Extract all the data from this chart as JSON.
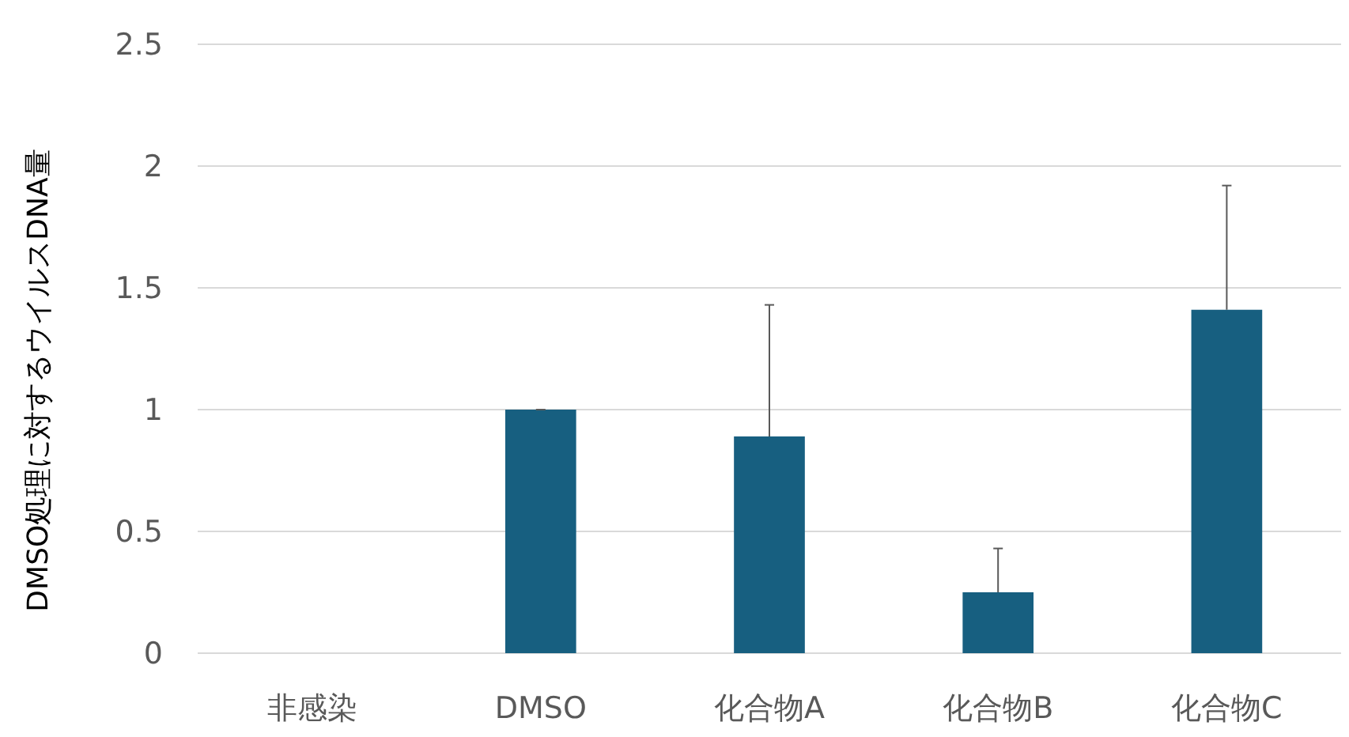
{
  "chart_data": {
    "type": "bar",
    "ylabel": "DMSO処理に対するウイルスDNA量",
    "categories": [
      "非感染",
      "DMSO",
      "化合物A",
      "化合物B",
      "化合物C"
    ],
    "values": [
      0,
      1.0,
      0.89,
      0.25,
      1.41
    ],
    "errors": [
      null,
      [
        1.0,
        1.0
      ],
      [
        0.89,
        1.43
      ],
      [
        0.25,
        0.43
      ],
      [
        1.41,
        1.92
      ]
    ],
    "color": "#175f80",
    "ylim": [
      0,
      2.5
    ],
    "yticks": [
      0,
      0.5,
      1,
      1.5,
      2,
      2.5
    ],
    "grid": "y"
  }
}
